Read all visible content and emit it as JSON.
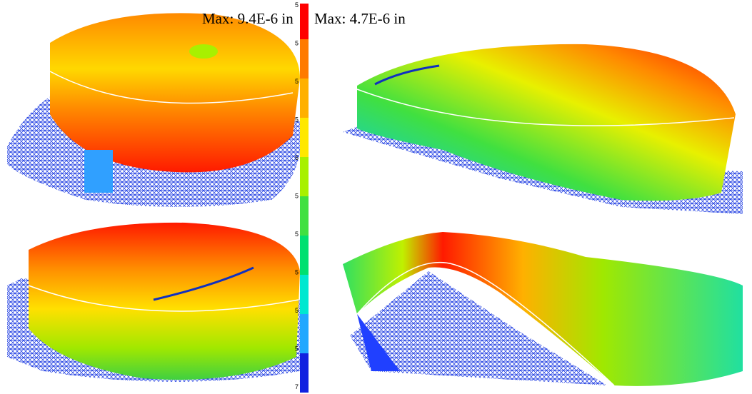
{
  "labels": {
    "max_left": "Max: 9.4E-6 in",
    "max_right": "Max: 4.7E-6 in"
  },
  "colorbar": {
    "tick_fragments": [
      "5",
      "5",
      "5",
      "5",
      "5",
      "5",
      "5",
      "5",
      "5",
      "5",
      "7"
    ]
  }
}
